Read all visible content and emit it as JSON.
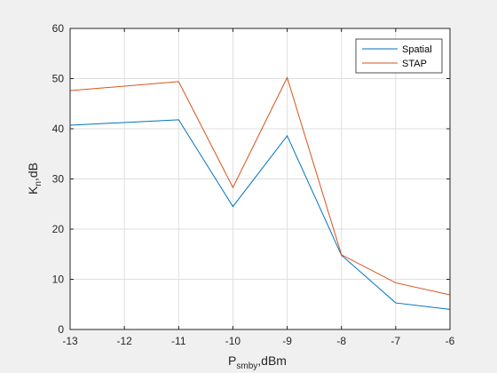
{
  "chart_data": {
    "type": "line",
    "title": "",
    "xlabel": {
      "base": "P",
      "sub": "smby",
      "suffix": ",dBm"
    },
    "ylabel": {
      "base": "K",
      "sub": "n",
      "suffix": ",dB"
    },
    "xlim": [
      -13,
      -6
    ],
    "ylim": [
      0,
      60
    ],
    "xticks": [
      -13,
      -12,
      -11,
      -10,
      -9,
      -8,
      -7,
      -6
    ],
    "yticks": [
      0,
      10,
      20,
      30,
      40,
      50,
      60
    ],
    "grid": true,
    "legend_position": "top-right",
    "x": [
      -13,
      -11,
      -10,
      -9,
      -8,
      -7,
      -6
    ],
    "series": [
      {
        "name": "Spatial",
        "color": "#0072BD",
        "values": [
          40.7,
          41.8,
          24.5,
          38.6,
          14.8,
          5.3,
          4.0
        ]
      },
      {
        "name": "STAP",
        "color": "#D95319",
        "values": [
          47.6,
          49.4,
          28.3,
          50.2,
          14.9,
          9.3,
          6.9
        ]
      }
    ]
  }
}
